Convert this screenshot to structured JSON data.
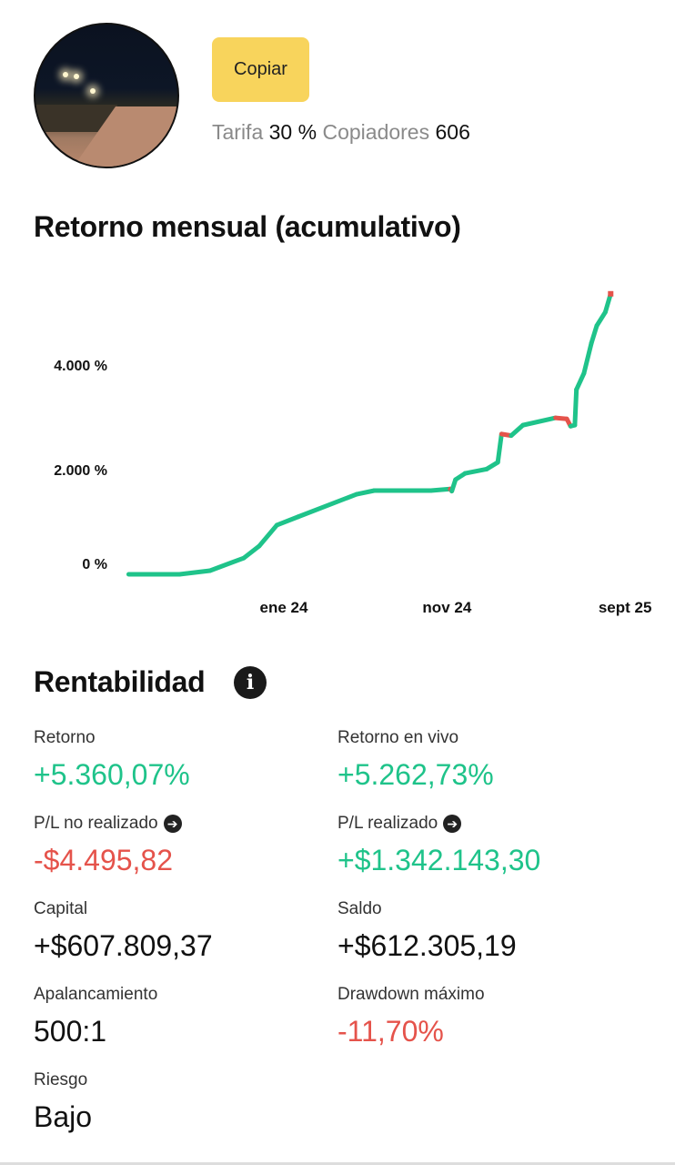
{
  "profile": {
    "copy_label": "Copiar",
    "fee_label": "Tarifa",
    "fee_value": "30 %",
    "copiers_label": "Copiadores",
    "copiers_value": "606"
  },
  "chart_section": {
    "title": "Retorno mensual (acumulativo)"
  },
  "chart_data": {
    "type": "line",
    "title": "Retorno mensual (acumulativo)",
    "xlabel": "",
    "ylabel": "",
    "y_ticks": [
      {
        "value": 0,
        "label": "0 %"
      },
      {
        "value": 2000,
        "label": "2.000 %"
      },
      {
        "value": 4000,
        "label": "4.000 %"
      }
    ],
    "x_ticks": [
      {
        "date": "2024-01-01",
        "label": "ene 24"
      },
      {
        "date": "2024-11-01",
        "label": "nov 24"
      },
      {
        "date": "2025-09-01",
        "label": "sept 25"
      }
    ],
    "grid": false,
    "colors": {
      "up": "#1fc38a",
      "down": "#e5534b"
    },
    "points": [
      [
        "2023-03-17",
        0
      ],
      [
        "2023-06-20",
        0
      ],
      [
        "2023-08-16",
        70
      ],
      [
        "2023-10-18",
        310
      ],
      [
        "2023-11-16",
        540
      ],
      [
        "2023-12-19",
        940
      ],
      [
        "2024-01-28",
        1100
      ],
      [
        "2024-05-16",
        1530
      ],
      [
        "2024-06-18",
        1600
      ],
      [
        "2024-10-02",
        1600
      ],
      [
        "2024-11-07",
        1630
      ],
      [
        "2024-11-10",
        1590
      ],
      [
        "2024-11-17",
        1810
      ],
      [
        "2024-12-05",
        1930
      ],
      [
        "2025-01-14",
        2010
      ],
      [
        "2025-02-04",
        2140
      ],
      [
        "2025-02-11",
        2680
      ],
      [
        "2025-03-01",
        2650
      ],
      [
        "2025-03-23",
        2850
      ],
      [
        "2025-05-23",
        2990
      ],
      [
        "2025-06-13",
        2970
      ],
      [
        "2025-06-20",
        2830
      ],
      [
        "2025-06-28",
        2850
      ],
      [
        "2025-07-01",
        3530
      ],
      [
        "2025-07-15",
        3840
      ],
      [
        "2025-07-29",
        4420
      ],
      [
        "2025-08-08",
        4750
      ],
      [
        "2025-08-24",
        5010
      ],
      [
        "2025-09-03",
        5360
      ]
    ]
  },
  "profitability": {
    "title": "Rentabilidad",
    "stats": [
      {
        "label": "Retorno",
        "value": "+5.360,07%",
        "tone": "green"
      },
      {
        "label": "Retorno en vivo",
        "value": "+5.262,73%",
        "tone": "green"
      },
      {
        "label": "P/L no realizado",
        "value": "-$4.495,82",
        "tone": "red",
        "arrow": true
      },
      {
        "label": "P/L realizado",
        "value": "+$1.342.143,30",
        "tone": "green",
        "arrow": true
      },
      {
        "label": "Capital",
        "value": "+$607.809,37",
        "tone": "black"
      },
      {
        "label": "Saldo",
        "value": "+$612.305,19",
        "tone": "black"
      },
      {
        "label": "Apalancamiento",
        "value": "500:1",
        "tone": "black"
      },
      {
        "label": "Drawdown máximo",
        "value": "-11,70%",
        "tone": "red"
      },
      {
        "label": "Riesgo",
        "value": "Bajo",
        "tone": "black"
      }
    ]
  }
}
